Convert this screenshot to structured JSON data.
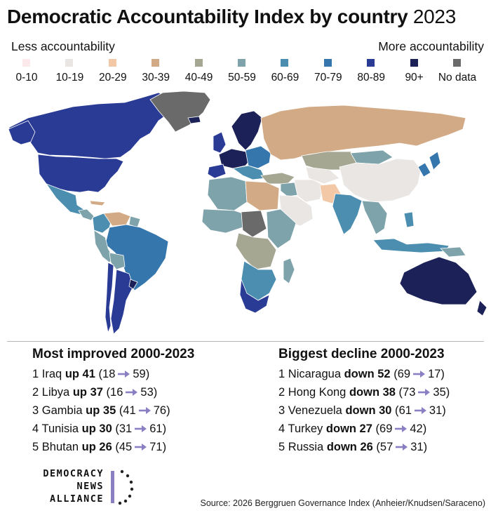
{
  "title": {
    "bold": "Democratic Accountability Index by country",
    "year": "2023"
  },
  "scale": {
    "low_label": "Less accountability",
    "high_label": "More accountability"
  },
  "legend": [
    {
      "label": "0-10",
      "color": "#fbe9ec"
    },
    {
      "label": "10-19",
      "color": "#e9e6e3"
    },
    {
      "label": "20-29",
      "color": "#f3c8a6"
    },
    {
      "label": "30-39",
      "color": "#d2aa86"
    },
    {
      "label": "40-49",
      "color": "#a5a793"
    },
    {
      "label": "50-59",
      "color": "#7ea3aa"
    },
    {
      "label": "60-69",
      "color": "#4c8eb0"
    },
    {
      "label": "70-79",
      "color": "#3576ad"
    },
    {
      "label": "80-89",
      "color": "#2a3b95"
    },
    {
      "label": "90+",
      "color": "#1c2157"
    },
    {
      "label": "No data",
      "color": "#6a6a6a"
    }
  ],
  "most_improved": {
    "title": "Most improved 2000-2023",
    "items": [
      {
        "rank": "1",
        "country": "Iraq",
        "change": "up 41",
        "from": "18",
        "to": "59"
      },
      {
        "rank": "2",
        "country": "Libya",
        "change": "up 37",
        "from": "16",
        "to": "53"
      },
      {
        "rank": "3",
        "country": "Gambia",
        "change": "up 35",
        "from": "41",
        "to": "76"
      },
      {
        "rank": "4",
        "country": "Tunisia",
        "change": "up 30",
        "from": "31",
        "to": "61"
      },
      {
        "rank": "5",
        "country": "Bhutan",
        "change": "up 26",
        "from": "45",
        "to": "71"
      }
    ]
  },
  "biggest_decline": {
    "title": "Biggest decline 2000-2023",
    "items": [
      {
        "rank": "1",
        "country": "Nicaragua",
        "change": "down 52",
        "from": "69",
        "to": "17"
      },
      {
        "rank": "2",
        "country": "Hong Kong",
        "change": "down 38",
        "from": "73",
        "to": "35"
      },
      {
        "rank": "3",
        "country": "Venezuela",
        "change": "down 30",
        "from": "61",
        "to": "31"
      },
      {
        "rank": "4",
        "country": "Turkey",
        "change": "down 27",
        "from": "69",
        "to": "42"
      },
      {
        "rank": "5",
        "country": "Russia",
        "change": "down 26",
        "from": "57",
        "to": "31"
      }
    ]
  },
  "logo": {
    "line1": "DEMOCRACY",
    "line2": "NEWS",
    "line3": "ALLIANCE",
    "accent_color": "#8b7fc4"
  },
  "arrow_color": "#8b7fc4",
  "source": "Source: 2026 Berggruen Governance Index (Anheier/Knudsen/Saraceno)"
}
